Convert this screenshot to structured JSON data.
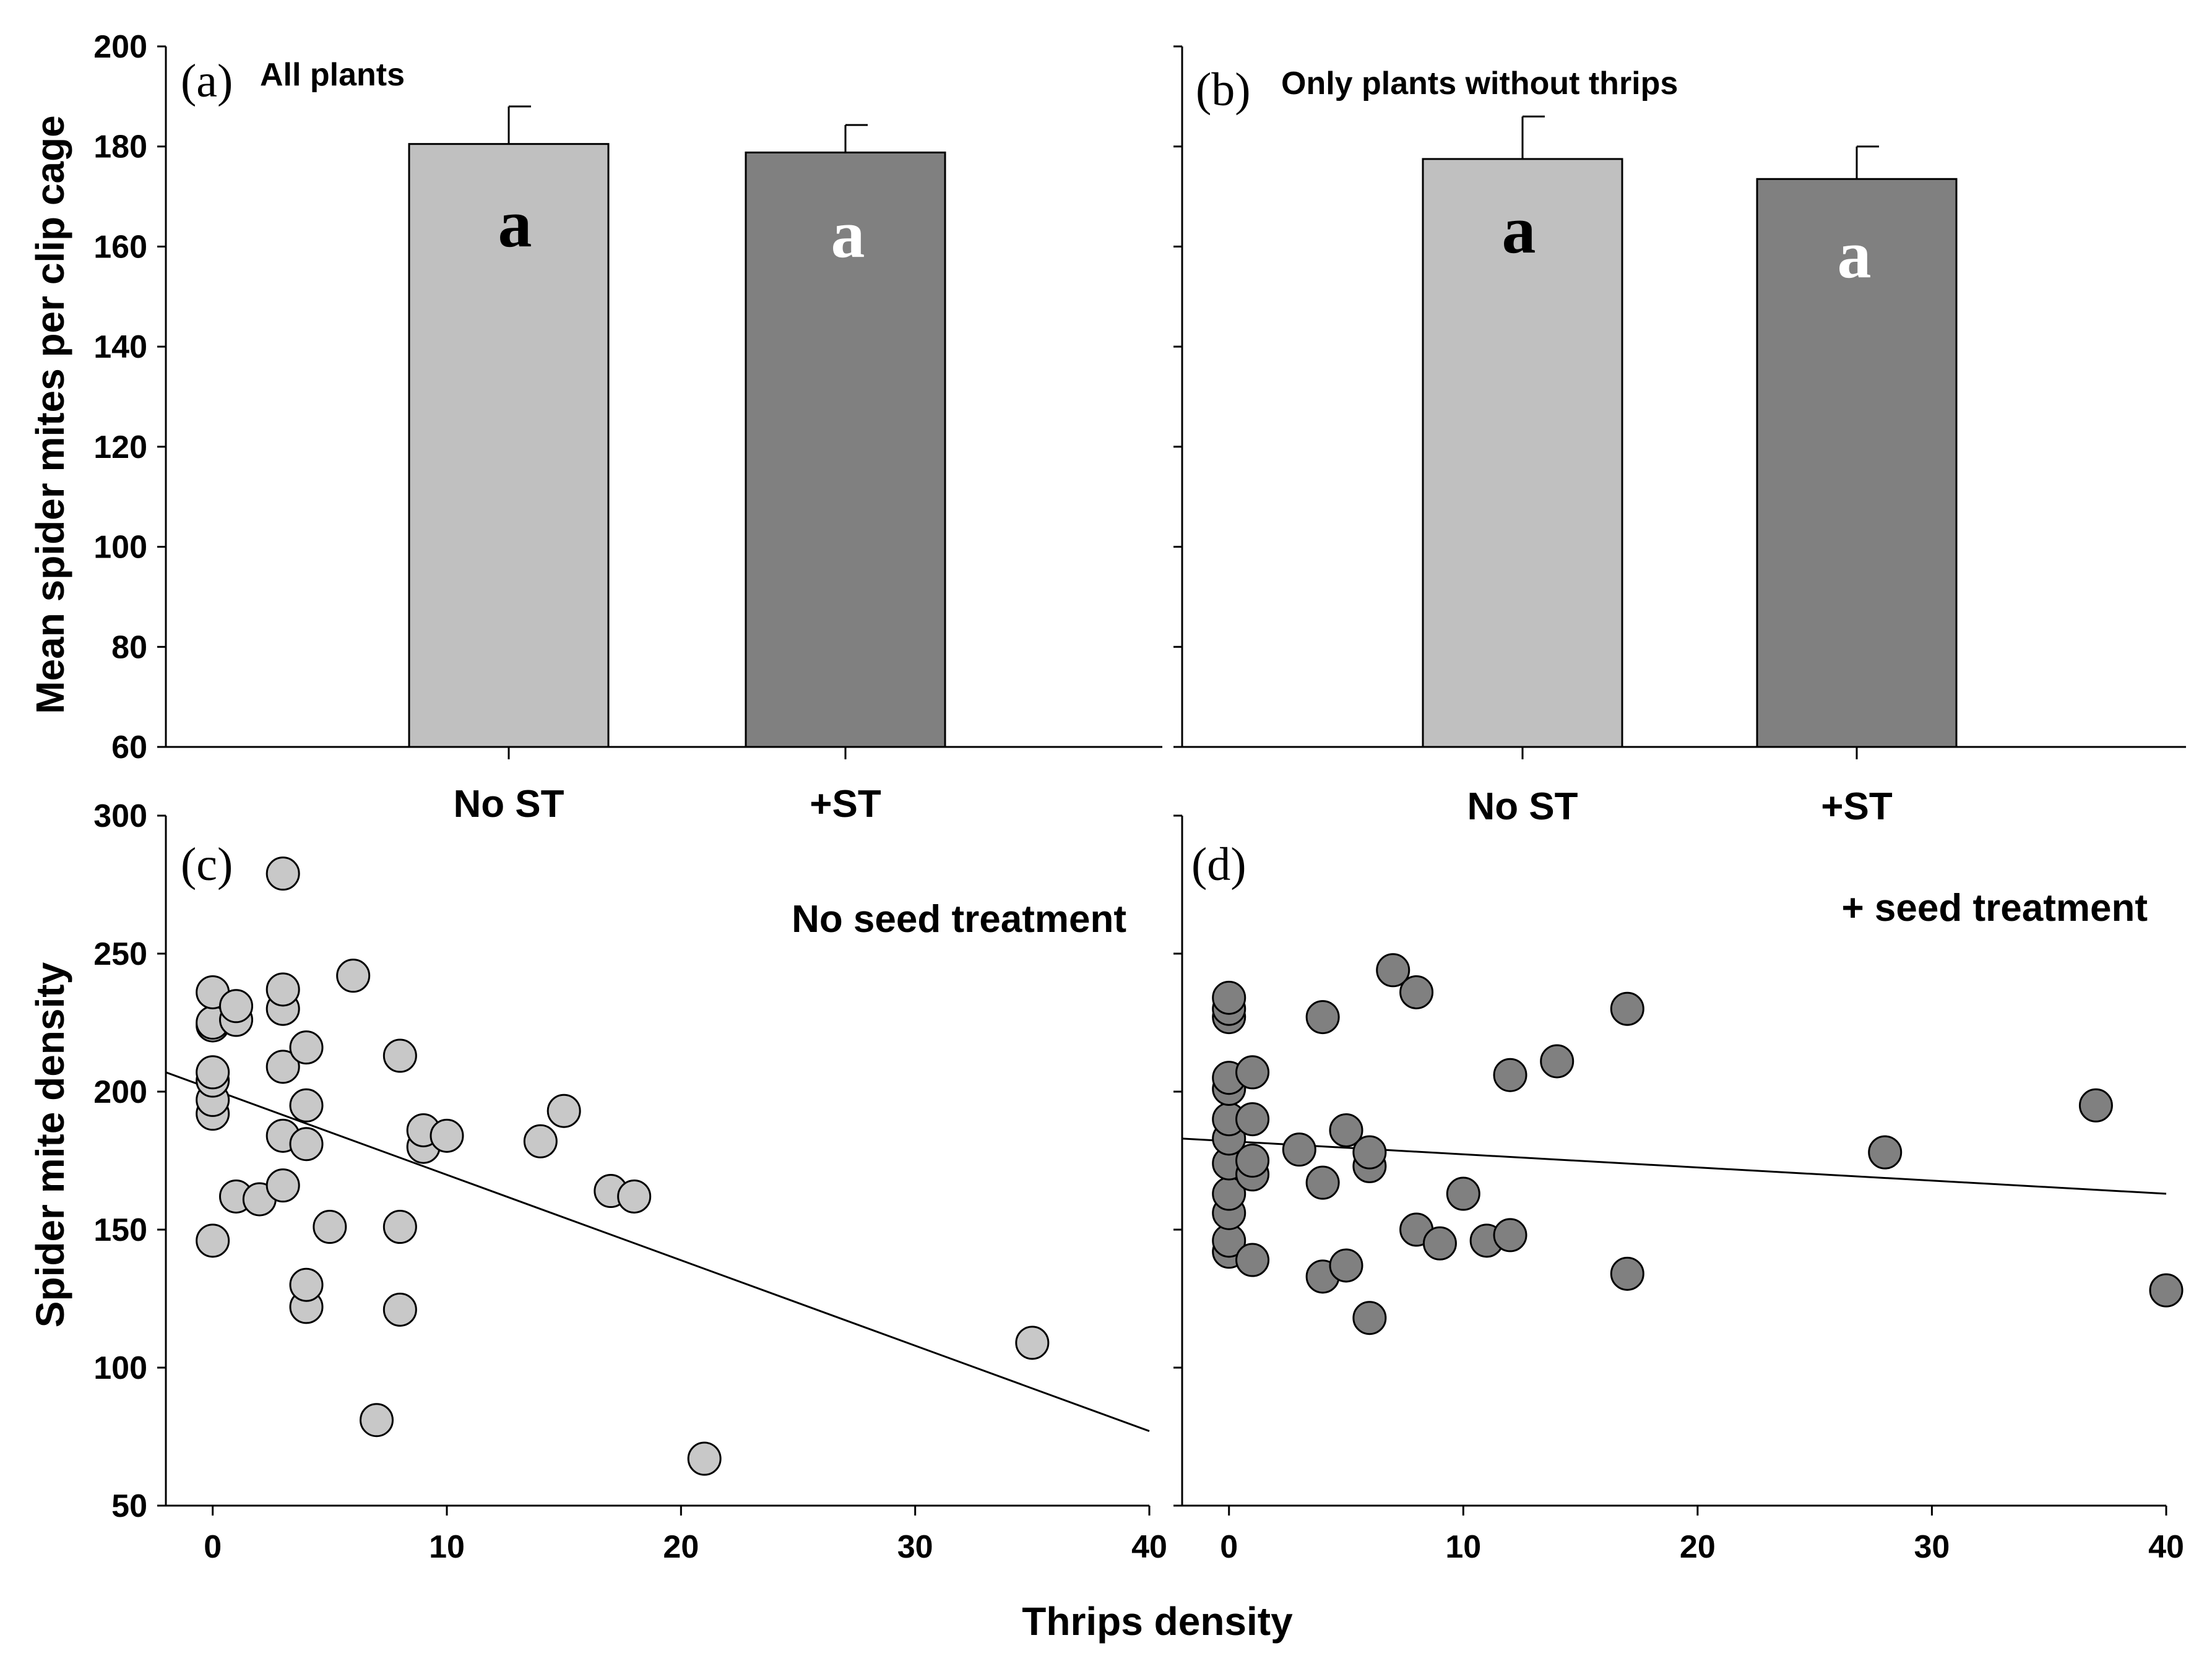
{
  "chart_data": [
    {
      "id": "a",
      "type": "bar",
      "panel_label": "(a)",
      "title": "All plants",
      "ylabel": "Mean spider mites per clip cage",
      "ylim": [
        60,
        200
      ],
      "yticks": [
        60,
        80,
        100,
        120,
        140,
        160,
        180,
        200
      ],
      "categories": [
        "No ST",
        "+ST"
      ],
      "values": [
        180.5,
        178.8
      ],
      "errors": [
        7.5,
        5.5
      ],
      "bar_colors": [
        "#c0c0c0",
        "#808080"
      ],
      "letters": [
        "a",
        "a"
      ],
      "letter_colors": [
        "#000000",
        "#ffffff"
      ]
    },
    {
      "id": "b",
      "type": "bar",
      "panel_label": "(b)",
      "title": "Only plants without thrips",
      "ylim": [
        60,
        200
      ],
      "categories": [
        "No ST",
        "+ST"
      ],
      "values": [
        177.5,
        173.5
      ],
      "errors": [
        8.5,
        6.5
      ],
      "bar_colors": [
        "#c0c0c0",
        "#808080"
      ],
      "letters": [
        "a",
        "a"
      ],
      "letter_colors": [
        "#000000",
        "#ffffff"
      ]
    },
    {
      "id": "c",
      "type": "scatter",
      "panel_label": "(c)",
      "title": "No seed treatment",
      "ylabel": "Spider mite density",
      "xlabel": "Thrips density",
      "xlim": [
        -2,
        40
      ],
      "xticks": [
        0,
        10,
        20,
        30,
        40
      ],
      "ylim": [
        50,
        300
      ],
      "yticks": [
        50,
        100,
        150,
        200,
        250,
        300
      ],
      "marker_color": "#c8c8c8",
      "points": [
        [
          0,
          146
        ],
        [
          0,
          192
        ],
        [
          0,
          197
        ],
        [
          0,
          204
        ],
        [
          0,
          207
        ],
        [
          0,
          224
        ],
        [
          0,
          225
        ],
        [
          0,
          236
        ],
        [
          1,
          162
        ],
        [
          1,
          226
        ],
        [
          1,
          231
        ],
        [
          2,
          161
        ],
        [
          3,
          166
        ],
        [
          3,
          184
        ],
        [
          3,
          209
        ],
        [
          3,
          230
        ],
        [
          3,
          237
        ],
        [
          3,
          279
        ],
        [
          4,
          122
        ],
        [
          4,
          130
        ],
        [
          4,
          181
        ],
        [
          4,
          195
        ],
        [
          4,
          216
        ],
        [
          5,
          151
        ],
        [
          6,
          242
        ],
        [
          7,
          81
        ],
        [
          8,
          121
        ],
        [
          8,
          151
        ],
        [
          8,
          213
        ],
        [
          9,
          180
        ],
        [
          9,
          186
        ],
        [
          10,
          184
        ],
        [
          14,
          182
        ],
        [
          15,
          193
        ],
        [
          17,
          164
        ],
        [
          18,
          162
        ],
        [
          21,
          67
        ],
        [
          35,
          109
        ]
      ],
      "fit_line": {
        "x": [
          -2,
          40
        ],
        "y": [
          207,
          77
        ]
      }
    },
    {
      "id": "d",
      "type": "scatter",
      "panel_label": "(d)",
      "title": "+ seed treatment",
      "xlim": [
        -2,
        40
      ],
      "xticks": [
        0,
        10,
        20,
        30,
        40
      ],
      "ylim": [
        50,
        300
      ],
      "marker_color": "#808080",
      "points": [
        [
          0,
          142
        ],
        [
          0,
          146
        ],
        [
          0,
          156
        ],
        [
          0,
          163
        ],
        [
          0,
          174
        ],
        [
          0,
          183
        ],
        [
          0,
          190
        ],
        [
          0,
          201
        ],
        [
          0,
          205
        ],
        [
          0,
          227
        ],
        [
          0,
          230
        ],
        [
          0,
          234
        ],
        [
          1,
          139
        ],
        [
          1,
          170
        ],
        [
          1,
          175
        ],
        [
          1,
          190
        ],
        [
          1,
          207
        ],
        [
          3,
          179
        ],
        [
          4,
          133
        ],
        [
          4,
          167
        ],
        [
          4,
          227
        ],
        [
          5,
          137
        ],
        [
          5,
          186
        ],
        [
          6,
          118
        ],
        [
          6,
          173
        ],
        [
          6,
          178
        ],
        [
          7,
          244
        ],
        [
          8,
          150
        ],
        [
          8,
          236
        ],
        [
          9,
          145
        ],
        [
          10,
          163
        ],
        [
          11,
          146
        ],
        [
          12,
          148
        ],
        [
          12,
          206
        ],
        [
          14,
          211
        ],
        [
          17,
          134
        ],
        [
          17,
          230
        ],
        [
          28,
          178
        ],
        [
          37,
          195
        ],
        [
          40,
          128
        ]
      ],
      "fit_line": {
        "x": [
          -2,
          40
        ],
        "y": [
          183,
          163
        ]
      }
    }
  ]
}
